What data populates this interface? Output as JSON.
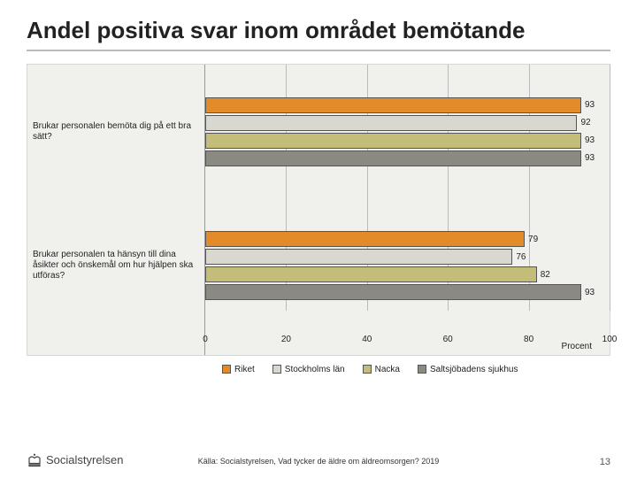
{
  "title": "Andel positiva svar inom området bemötande",
  "chart": {
    "type": "bar",
    "orientation": "horizontal",
    "xlim": [
      0,
      100
    ],
    "xticks": [
      0,
      20,
      40,
      60,
      80,
      100
    ],
    "axis_title": "Procent",
    "background_color": "#f0f0ec",
    "grid_color": "#bbbbbb",
    "bar_border_color": "#555555",
    "series": [
      {
        "name": "Riket",
        "color": "#e38b2a"
      },
      {
        "name": "Stockholms län",
        "color": "#d8d8d0"
      },
      {
        "name": "Nacka",
        "color": "#c4bd7a"
      },
      {
        "name": "Saltsjöbadens sjukhus",
        "color": "#8a8a82"
      }
    ],
    "groups": [
      {
        "label": "Brukar personalen bemöta dig på ett bra sätt?",
        "values": [
          93,
          92,
          93,
          93
        ]
      },
      {
        "label": "Brukar personalen ta hänsyn till dina åsikter och önskemål om hur hjälpen ska utföras?",
        "values": [
          79,
          76,
          82,
          93
        ]
      }
    ]
  },
  "legend_labels": [
    "Riket",
    "Stockholms län",
    "Nacka",
    "Saltsjöbadens sjukhus"
  ],
  "source": "Källa: Socialstyrelsen, Vad tycker de äldre om äldreomsorgen? 2019",
  "org_name": "Socialstyrelsen",
  "page_number": "13"
}
